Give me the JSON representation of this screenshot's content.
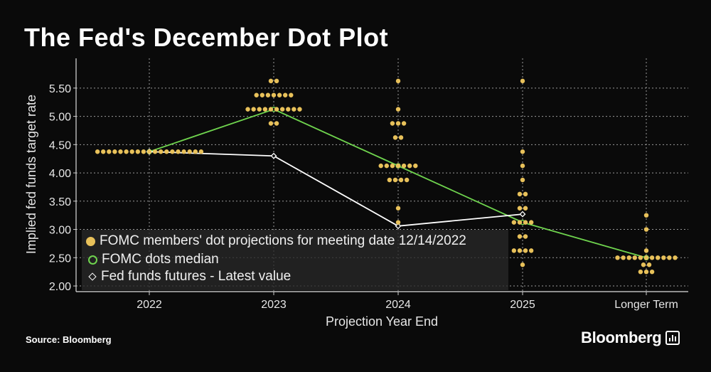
{
  "title": "The Fed's December Dot Plot",
  "source": "Source: Bloomberg",
  "brand": "Bloomberg",
  "brand_icon": "bar-chart-icon",
  "colors": {
    "dots": "#e8c15a",
    "median": "#6fd44e",
    "futures": "#ffffff",
    "background": "#0a0a0a"
  },
  "chart_data": {
    "type": "scatter",
    "xlabel": "Projection Year End",
    "ylabel": "Implied fed funds target rate",
    "categories": [
      "2022",
      "2023",
      "2024",
      "2025",
      "Longer Term"
    ],
    "yticks": [
      "2.00",
      "2.50",
      "3.00",
      "3.50",
      "4.00",
      "4.50",
      "5.00",
      "5.50"
    ],
    "ylim": [
      1.9,
      5.85
    ],
    "grid": true,
    "legend_position": "bottom-left",
    "legend": [
      "FOMC members' dot projections for meeting date 12/14/2022",
      "FOMC dots median",
      "Fed funds futures - Latest value"
    ],
    "dots": [
      [
        [
          4.375,
          19
        ]
      ],
      [
        [
          5.625,
          2
        ],
        [
          5.375,
          7
        ],
        [
          5.125,
          10
        ],
        [
          4.875,
          2
        ]
      ],
      [
        [
          5.625,
          1
        ],
        [
          5.125,
          1
        ],
        [
          4.875,
          3
        ],
        [
          4.625,
          2
        ],
        [
          4.125,
          7
        ],
        [
          3.875,
          4
        ],
        [
          3.375,
          1
        ],
        [
          3.125,
          1
        ]
      ],
      [
        [
          5.625,
          1
        ],
        [
          4.375,
          1
        ],
        [
          4.125,
          1
        ],
        [
          3.875,
          1
        ],
        [
          3.625,
          2
        ],
        [
          3.375,
          2
        ],
        [
          3.125,
          4
        ],
        [
          2.875,
          2
        ],
        [
          2.625,
          4
        ],
        [
          2.375,
          1
        ]
      ],
      [
        [
          3.25,
          1
        ],
        [
          3.0,
          1
        ],
        [
          2.625,
          1
        ],
        [
          2.5,
          11
        ],
        [
          2.375,
          2
        ],
        [
          2.25,
          3
        ]
      ]
    ],
    "series": [
      {
        "name": "FOMC dots median",
        "values": [
          4.375,
          5.125,
          4.125,
          3.125,
          2.5
        ]
      },
      {
        "name": "Fed funds futures - Latest value",
        "values": [
          4.375,
          4.3,
          3.06,
          3.27
        ]
      }
    ]
  }
}
